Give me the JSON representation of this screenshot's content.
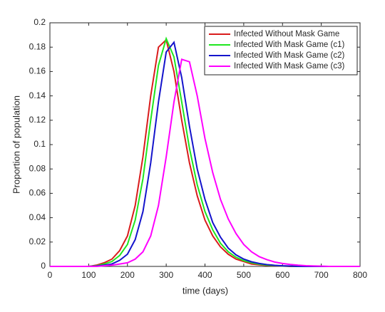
{
  "chart_data": {
    "type": "line",
    "xlabel": "time (days)",
    "ylabel": "Proportion of population",
    "x": [
      0,
      20,
      40,
      60,
      80,
      100,
      120,
      140,
      160,
      180,
      200,
      220,
      240,
      260,
      280,
      300,
      320,
      340,
      360,
      380,
      400,
      420,
      440,
      460,
      480,
      500,
      520,
      540,
      560,
      580,
      600,
      620,
      640,
      660,
      680,
      700,
      720,
      740,
      760,
      780,
      800
    ],
    "series": [
      {
        "name": "Infected Without Mask Game",
        "color": "#d91c1c",
        "values": [
          0,
          0,
          0,
          0,
          0,
          0,
          0.001,
          0.003,
          0.006,
          0.013,
          0.025,
          0.05,
          0.09,
          0.14,
          0.18,
          0.186,
          0.16,
          0.12,
          0.085,
          0.058,
          0.038,
          0.025,
          0.016,
          0.01,
          0.006,
          0.004,
          0.002,
          0.0013,
          0.0008,
          0.0005,
          0.0003,
          0,
          0,
          0,
          0,
          0,
          0,
          0,
          0,
          0,
          0
        ]
      },
      {
        "name": "Infected With Mask Game (c1)",
        "color": "#1ee61e",
        "values": [
          0,
          0,
          0,
          0,
          0,
          0,
          0.0005,
          0.002,
          0.004,
          0.009,
          0.018,
          0.038,
          0.072,
          0.12,
          0.165,
          0.187,
          0.172,
          0.135,
          0.097,
          0.067,
          0.045,
          0.03,
          0.019,
          0.012,
          0.0075,
          0.0047,
          0.003,
          0.0018,
          0.0011,
          0.0007,
          0.0004,
          0.0002,
          0,
          0,
          0,
          0,
          0,
          0,
          0,
          0,
          0
        ]
      },
      {
        "name": "Infected With Mask Game (c2)",
        "color": "#1414cc",
        "values": [
          0,
          0,
          0,
          0,
          0,
          0,
          0.0003,
          0.001,
          0.002,
          0.005,
          0.01,
          0.022,
          0.045,
          0.085,
          0.135,
          0.176,
          0.184,
          0.155,
          0.115,
          0.08,
          0.055,
          0.036,
          0.024,
          0.015,
          0.0095,
          0.006,
          0.0038,
          0.0024,
          0.0015,
          0.0009,
          0.0005,
          0.0003,
          0.0001,
          0,
          0,
          0,
          0,
          0,
          0,
          0,
          0
        ]
      },
      {
        "name": "Infected With Mask Game (c3)",
        "color": "#ff00ff",
        "values": [
          0,
          0,
          0,
          0,
          0,
          0,
          0,
          0.0005,
          0.001,
          0.002,
          0.003,
          0.006,
          0.012,
          0.025,
          0.05,
          0.09,
          0.135,
          0.17,
          0.168,
          0.14,
          0.105,
          0.077,
          0.055,
          0.039,
          0.027,
          0.018,
          0.012,
          0.008,
          0.0055,
          0.0036,
          0.0024,
          0.0016,
          0.001,
          0.0006,
          0.0004,
          0.0002,
          0,
          0,
          0,
          0,
          0
        ]
      }
    ],
    "xlim": [
      0,
      800
    ],
    "xticks": [
      0,
      100,
      200,
      300,
      400,
      500,
      600,
      700,
      800
    ],
    "ylim": [
      0,
      0.2
    ],
    "yticks": [
      0,
      0.02,
      0.04,
      0.06,
      0.08,
      0.1,
      0.12,
      0.14,
      0.16,
      0.18,
      0.2
    ],
    "legend": "upper right",
    "grid": false
  }
}
